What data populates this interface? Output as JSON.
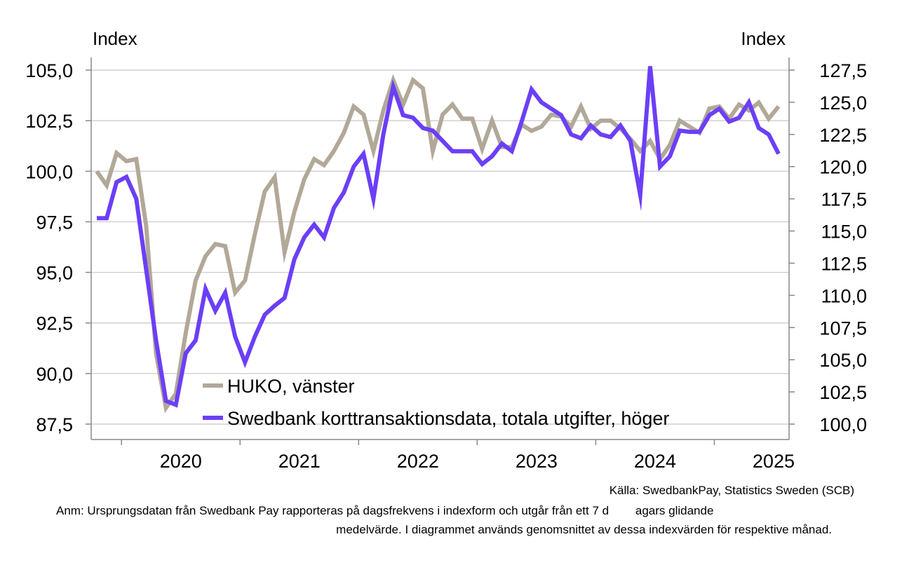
{
  "chart_data": {
    "type": "line",
    "left_axis_title": "Index",
    "right_axis_title": "Index",
    "left_ylim": [
      87.5,
      105.0
    ],
    "right_ylim": [
      100.0,
      127.5
    ],
    "left_ticks": [
      "87,5",
      "90,0",
      "92,5",
      "95,0",
      "97,5",
      "100,0",
      "102,5",
      "105,0"
    ],
    "right_ticks": [
      "100,0",
      "102,5",
      "105,0",
      "107,5",
      "110,0",
      "112,5",
      "115,0",
      "117,5",
      "120,0",
      "122,5",
      "125,0",
      "127,5"
    ],
    "x_tick_labels": [
      "2020",
      "2021",
      "2022",
      "2023",
      "2024",
      "2025"
    ],
    "x_start": "2019-10",
    "x_end": "2025-05",
    "grid": true,
    "legend_position": "bottom-left",
    "series": [
      {
        "name": "HUKO, vänster",
        "axis": "left",
        "color": "#b2a898",
        "values": [
          100.0,
          99.3,
          100.9,
          100.5,
          100.6,
          97.3,
          91.0,
          88.3,
          89.0,
          92.0,
          94.6,
          95.8,
          96.4,
          96.3,
          94.0,
          94.6,
          96.9,
          99.0,
          99.7,
          96.0,
          98.0,
          99.6,
          100.6,
          100.3,
          101.0,
          101.9,
          103.2,
          102.8,
          101.0,
          103.0,
          104.5,
          103.3,
          104.5,
          104.1,
          101.0,
          102.8,
          103.3,
          102.6,
          102.6,
          101.1,
          102.5,
          101.2,
          101.2,
          102.3,
          102.0,
          102.2,
          102.8,
          102.7,
          102.2,
          103.2,
          102.1,
          102.5,
          102.5,
          102.1,
          101.6,
          101.0,
          101.5,
          100.6,
          101.3,
          102.5,
          102.2,
          101.9,
          103.1,
          103.2,
          102.6,
          103.3,
          103.0,
          103.4,
          102.6,
          103.2
        ],
        "months": [
          "2019-10",
          "2019-11",
          "2019-12",
          "2020-01",
          "2020-02",
          "2020-03",
          "2020-04",
          "2020-05",
          "2020-06",
          "2020-07",
          "2020-08",
          "2020-09",
          "2020-10",
          "2020-11",
          "2020-12",
          "2021-01",
          "2021-02",
          "2021-03",
          "2021-04",
          "2021-05",
          "2021-06",
          "2021-07",
          "2021-08",
          "2021-09",
          "2021-10",
          "2021-11",
          "2021-12",
          "2022-01",
          "2022-02",
          "2022-03",
          "2022-04",
          "2022-05",
          "2022-06",
          "2022-07",
          "2022-08",
          "2022-09",
          "2022-10",
          "2022-11",
          "2022-12",
          "2023-01",
          "2023-02",
          "2023-03",
          "2023-04",
          "2023-05",
          "2023-06",
          "2023-07",
          "2023-08",
          "2023-09",
          "2023-10",
          "2023-11",
          "2023-12",
          "2024-01",
          "2024-02",
          "2024-03",
          "2024-04",
          "2024-05",
          "2024-06",
          "2024-07",
          "2024-08",
          "2024-09",
          "2024-10",
          "2024-11",
          "2024-12",
          "2025-01",
          "2025-02",
          "2025-03",
          "2025-04",
          "2025-05",
          "2025-06",
          "2025-07"
        ]
      },
      {
        "name": "Swedbank korttransaktionsdata, totala utgifter, höger",
        "axis": "right",
        "color": "#6b3ff7",
        "values": [
          116.0,
          116.0,
          118.8,
          119.2,
          117.5,
          112.0,
          106.5,
          101.8,
          101.5,
          105.5,
          106.5,
          110.5,
          108.8,
          110.2,
          106.8,
          104.8,
          106.8,
          108.5,
          109.2,
          109.8,
          112.8,
          114.5,
          115.5,
          114.5,
          116.8,
          118.0,
          120.0,
          121.0,
          117.5,
          122.5,
          126.2,
          124.0,
          123.8,
          123.0,
          122.8,
          122.0,
          121.2,
          121.2,
          121.2,
          120.2,
          120.8,
          121.8,
          121.2,
          123.5,
          126.0,
          125.0,
          124.5,
          124.0,
          122.5,
          122.2,
          123.2,
          122.5,
          122.3,
          123.2,
          122.0,
          117.8,
          127.8,
          120.0,
          120.8,
          122.8,
          122.7,
          122.7,
          124.0,
          124.5,
          123.5,
          123.8,
          125.0,
          123.0,
          122.5,
          121.0
        ],
        "months": [
          "2019-10",
          "2019-11",
          "2019-12",
          "2020-01",
          "2020-02",
          "2020-03",
          "2020-04",
          "2020-05",
          "2020-06",
          "2020-07",
          "2020-08",
          "2020-09",
          "2020-10",
          "2020-11",
          "2020-12",
          "2021-01",
          "2021-02",
          "2021-03",
          "2021-04",
          "2021-05",
          "2021-06",
          "2021-07",
          "2021-08",
          "2021-09",
          "2021-10",
          "2021-11",
          "2021-12",
          "2022-01",
          "2022-02",
          "2022-03",
          "2022-04",
          "2022-05",
          "2022-06",
          "2022-07",
          "2022-08",
          "2022-09",
          "2022-10",
          "2022-11",
          "2022-12",
          "2023-01",
          "2023-02",
          "2023-03",
          "2023-04",
          "2023-05",
          "2023-06",
          "2023-07",
          "2023-08",
          "2023-09",
          "2023-10",
          "2023-11",
          "2023-12",
          "2024-01",
          "2024-02",
          "2024-03",
          "2024-04",
          "2024-05",
          "2024-06",
          "2024-07",
          "2024-08",
          "2024-09",
          "2024-10",
          "2024-11",
          "2024-12",
          "2025-01",
          "2025-02",
          "2025-03",
          "2025-04",
          "2025-05",
          "2025-06",
          "2025-07"
        ]
      }
    ]
  },
  "footer": {
    "source": "Källa: SwedbankPay, Statistics Sweden (SCB)",
    "note_line1": "Anm: Ursprungsdatan från Swedbank Pay rapporteras på dagsfrekvens i indexform och utgår från ett 7 d        agars glidande",
    "note_line2": "medelvärde. I diagrammet används genomsnittet av dessa indexvärden för respektive månad."
  }
}
